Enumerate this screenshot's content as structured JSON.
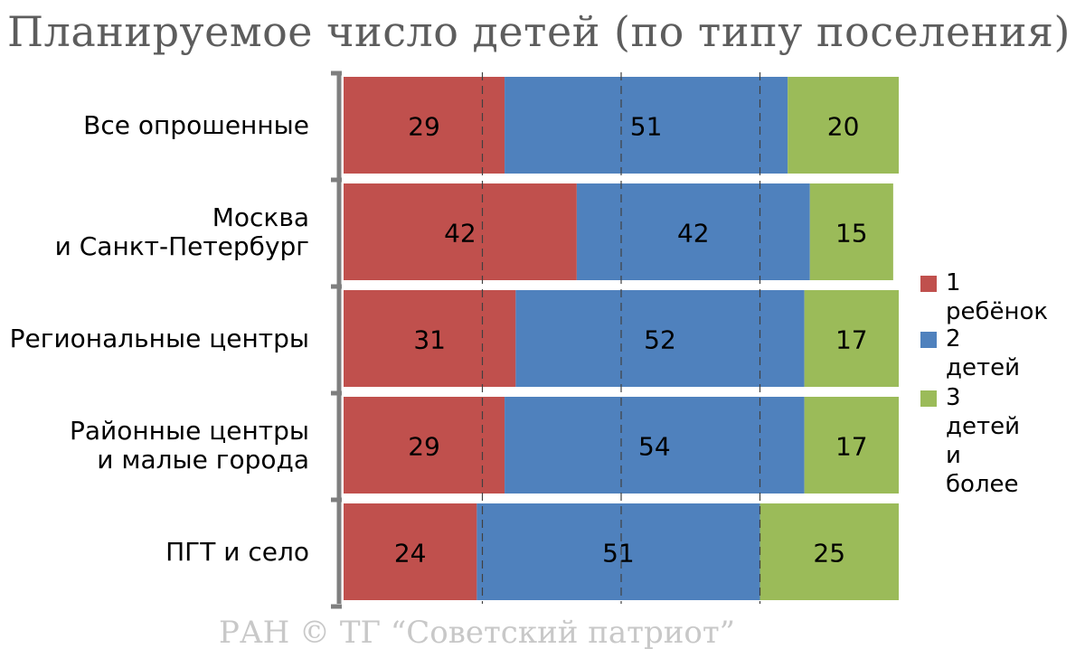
{
  "chart_data": {
    "type": "bar",
    "orientation": "horizontal",
    "stacked": true,
    "title": "Планируемое число детей (по типу поселения)",
    "categories": [
      "Все опрошенные",
      "Москва\nи Санкт-Петербург",
      "Региональные центры",
      "Районные центры\nи малые города",
      "ПГТ и село"
    ],
    "series": [
      {
        "name": "1 ребёнок",
        "color": "#c0504d",
        "values": [
          29,
          42,
          31,
          29,
          24
        ]
      },
      {
        "name": "2 детей",
        "color": "#4f81bd",
        "values": [
          51,
          42,
          52,
          54,
          51
        ]
      },
      {
        "name": "3 детей\nи более",
        "color": "#9bbb59",
        "values": [
          20,
          15,
          17,
          17,
          25
        ]
      }
    ],
    "xlim": [
      0,
      100
    ],
    "grid": "vertical dashed",
    "legend": "right"
  },
  "watermark": "РАН © ТГ “Советский патриот”"
}
